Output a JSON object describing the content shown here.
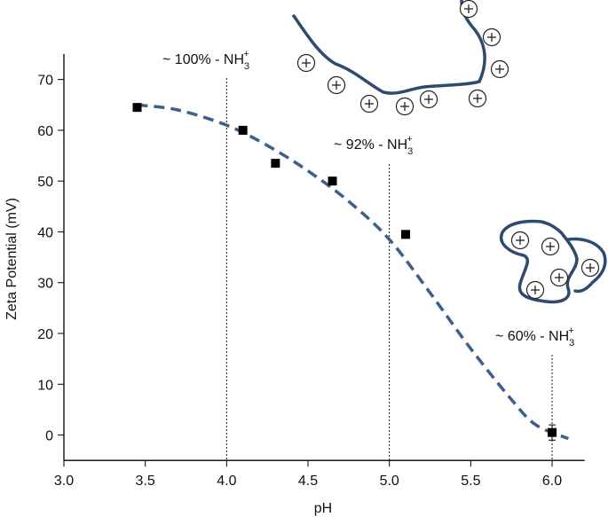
{
  "chart_data": {
    "type": "scatter",
    "xlabel": "pH",
    "ylabel": "Zeta Potential (mV)",
    "xlim": [
      3,
      6.2
    ],
    "ylim": [
      -5,
      75
    ],
    "xticks": [
      {
        "value": 3,
        "label": "3.0"
      },
      {
        "value": 3.5,
        "label": "3.5"
      },
      {
        "value": 4,
        "label": "4.0"
      },
      {
        "value": 4.5,
        "label": "4.5"
      },
      {
        "value": 5,
        "label": "5.0"
      },
      {
        "value": 5.5,
        "label": "5.5"
      },
      {
        "value": 6,
        "label": "6.0"
      }
    ],
    "yticks": [
      0,
      10,
      20,
      30,
      40,
      50,
      60,
      70
    ],
    "series": [
      {
        "type": "scatter",
        "color": "#000000",
        "x": [
          3.45,
          4.1,
          4.3,
          4.65,
          5.1,
          6.0
        ],
        "values": [
          64.5,
          60,
          53.5,
          50,
          39.5,
          0.5
        ],
        "errors": [
          null,
          null,
          null,
          null,
          null,
          1.5
        ]
      },
      {
        "type": "line",
        "color": "#3d5f8a",
        "dashed": true,
        "x": [
          3.45,
          3.7,
          4.0,
          4.25,
          4.5,
          4.75,
          5.0,
          5.25,
          5.5,
          5.75,
          5.9,
          6.1
        ],
        "values": [
          65,
          64,
          61,
          57,
          52,
          46,
          38.5,
          28,
          17,
          7,
          2,
          -0.7
        ]
      }
    ],
    "annotations": [
      {
        "x": 4,
        "text": "~ 100%  - NH",
        "sub": "3",
        "sup": "+"
      },
      {
        "x": 5,
        "text": "~ 92% - NH",
        "sub": "3",
        "sup": "+"
      },
      {
        "x": 6,
        "text": "~ 60% - NH",
        "sub": "3",
        "sup": "+"
      }
    ]
  }
}
